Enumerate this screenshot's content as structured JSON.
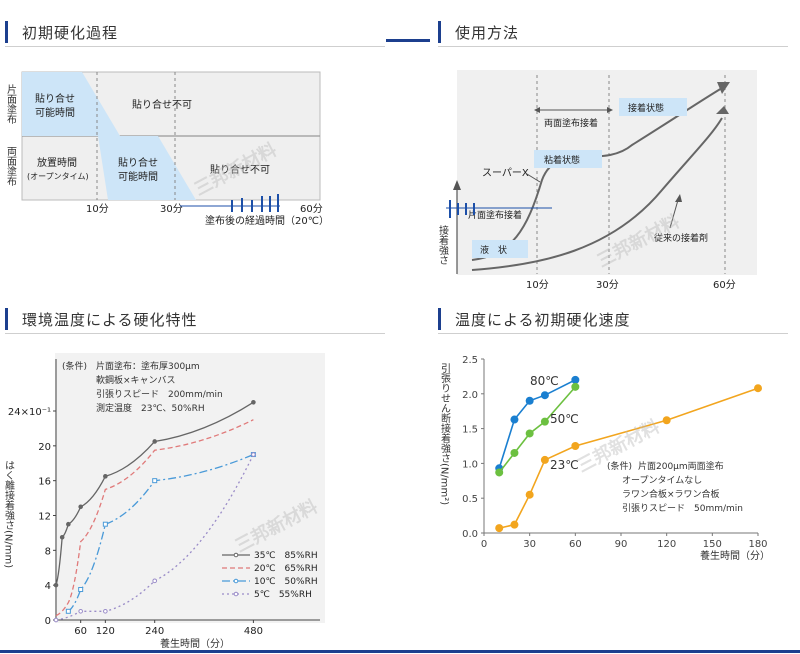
{
  "panels": {
    "p1": {
      "title": "初期硬化過程",
      "row1_label": "片面塗布",
      "row2_label": "両面塗布",
      "cell_r1_blue": "貼り合せ\n可能時間",
      "cell_r1_right": "貼り合せ不可",
      "cell_r2_left": "放置時間\n(オープンタイム)",
      "cell_r2_blue": "貼り合せ\n可能時間",
      "cell_r2_right": "貼り合せ不可",
      "ticks": [
        "10分",
        "30分",
        "60分"
      ],
      "xlabel": "塗布後の経過時間（20℃）",
      "watermark": "三邦新材料"
    },
    "p2": {
      "title": "使用方法",
      "ylabel": "接着強さ",
      "label_both": "両面塗布接着",
      "label_adhesion": "接着状態",
      "label_superx": "スーパーX",
      "label_tack": "粘着状態",
      "label_single": "片面塗布接着",
      "label_liquid": "液　状",
      "label_conventional": "従来の接着剤",
      "ticks": [
        "10分",
        "30分",
        "60分"
      ],
      "watermark": "三邦新材料"
    },
    "p3": {
      "title": "環境温度による硬化特性",
      "cond_label": "(条件)",
      "conditions": [
        "片面塗布：塗布厚300μm",
        "軟鋼板×キャンバス",
        "引張りスピード　200mm/min",
        "測定温度　23℃、50%RH"
      ],
      "ylabel": "はく離接着強さ(N/mm)",
      "xlabel": "養生時間（分）",
      "watermark": "三邦新材料"
    },
    "p4": {
      "title": "温度による初期硬化速度",
      "ylabel": "引張りせん断接着強さ(N/mm²)",
      "xlabel": "養生時間（分）",
      "cond_label": "(条件)",
      "conditions": [
        "片面200μm両面塗布",
        "オープンタイムなし",
        "ラワン合板×ラワン合板",
        "引張りスピード　50mm/min"
      ],
      "series_labels": [
        "80℃",
        "50℃",
        "23℃"
      ],
      "watermark": "三邦新材料"
    }
  },
  "chart_data": [
    {
      "type": "line",
      "title": "環境温度による硬化特性",
      "xlabel": "養生時間（分）",
      "ylabel": "はく離接着強さ(N/mm)",
      "xticks": [
        60,
        120,
        240,
        480
      ],
      "yticks": [
        "0",
        "4",
        "8",
        "12",
        "16",
        "20",
        "24×10⁻¹"
      ],
      "xlim": [
        0,
        510
      ],
      "ylim": [
        0,
        24
      ],
      "legend_position": "bottom-right",
      "colors": [
        "#666666",
        "#e07a7a",
        "#4a9ad8",
        "#9a8cc8"
      ],
      "series": [
        {
          "name": "35℃　85%RH",
          "x": [
            0,
            15,
            30,
            60,
            120,
            240,
            480
          ],
          "y": [
            4,
            9.5,
            11,
            13,
            16.5,
            20.5,
            25
          ]
        },
        {
          "name": "20℃　65%RH",
          "x": [
            0,
            30,
            60,
            120,
            240,
            480
          ],
          "y": [
            0.5,
            2,
            9,
            15,
            19.5,
            23
          ]
        },
        {
          "name": "10℃　50%RH",
          "x": [
            30,
            60,
            120,
            240,
            480
          ],
          "y": [
            1,
            3.5,
            11,
            16,
            19
          ]
        },
        {
          "name": "5℃　55%RH",
          "x": [
            0,
            60,
            120,
            240,
            480
          ],
          "y": [
            0,
            1,
            1,
            4.5,
            19
          ]
        }
      ]
    },
    {
      "type": "line",
      "title": "温度による初期硬化速度",
      "xlabel": "養生時間（分）",
      "ylabel": "引張りせん断接着強さ(N/mm²)",
      "xticks": [
        0,
        30,
        60,
        90,
        120,
        150,
        180
      ],
      "yticks": [
        0,
        0.5,
        1.0,
        1.5,
        2.0,
        2.5
      ],
      "xlim": [
        0,
        180
      ],
      "ylim": [
        0,
        2.5
      ],
      "colors": [
        "#1a7fd0",
        "#6cc040",
        "#f2a51e"
      ],
      "series": [
        {
          "name": "80℃",
          "x": [
            10,
            20,
            30,
            40,
            60
          ],
          "y": [
            0.93,
            1.63,
            1.9,
            1.98,
            2.2
          ]
        },
        {
          "name": "50℃",
          "x": [
            10,
            20,
            30,
            40,
            60
          ],
          "y": [
            0.87,
            1.15,
            1.43,
            1.6,
            2.1
          ]
        },
        {
          "name": "23℃",
          "x": [
            10,
            20,
            30,
            40,
            60,
            120,
            180
          ],
          "y": [
            0.07,
            0.12,
            0.55,
            1.05,
            1.25,
            1.62,
            2.08
          ]
        }
      ]
    }
  ]
}
